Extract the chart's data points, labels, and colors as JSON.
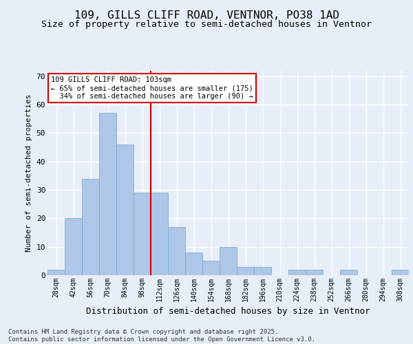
{
  "title1": "109, GILLS CLIFF ROAD, VENTNOR, PO38 1AD",
  "title2": "Size of property relative to semi-detached houses in Ventnor",
  "xlabel": "Distribution of semi-detached houses by size in Ventnor",
  "ylabel": "Number of semi-detached properties",
  "bar_labels": [
    "28sqm",
    "42sqm",
    "56sqm",
    "70sqm",
    "84sqm",
    "98sqm",
    "112sqm",
    "126sqm",
    "140sqm",
    "154sqm",
    "168sqm",
    "182sqm",
    "196sqm",
    "210sqm",
    "224sqm",
    "238sqm",
    "252sqm",
    "266sqm",
    "280sqm",
    "294sqm",
    "308sqm"
  ],
  "bar_values": [
    2,
    20,
    34,
    57,
    46,
    29,
    29,
    17,
    8,
    5,
    10,
    3,
    3,
    0,
    2,
    2,
    0,
    2,
    0,
    0,
    2
  ],
  "bar_color": "#aec6e8",
  "bar_edge_color": "#7aafd4",
  "vline_color": "#cc0000",
  "annotation_box_color": "#ffffff",
  "annotation_box_edge": "#cc0000",
  "ylim": [
    0,
    72
  ],
  "yticks": [
    0,
    10,
    20,
    30,
    40,
    50,
    60,
    70
  ],
  "bg_color": "#e8eef8",
  "plot_bg_color": "#e8eef8",
  "grid_color": "#ffffff",
  "footer": "Contains HM Land Registry data © Crown copyright and database right 2025.\nContains public sector information licensed under the Open Government Licence v3.0.",
  "title_fontsize": 11.5,
  "subtitle_fontsize": 9.5,
  "tick_fontsize": 7,
  "ylabel_fontsize": 8,
  "xlabel_fontsize": 9,
  "footer_fontsize": 6.5,
  "ann_fontsize": 7.5,
  "ann_label": "109 GILLS CLIFF ROAD: 103sqm",
  "smaller_pct": "65%",
  "smaller_count": 175,
  "larger_pct": "34%",
  "larger_count": 90,
  "vline_pos": 5.5
}
